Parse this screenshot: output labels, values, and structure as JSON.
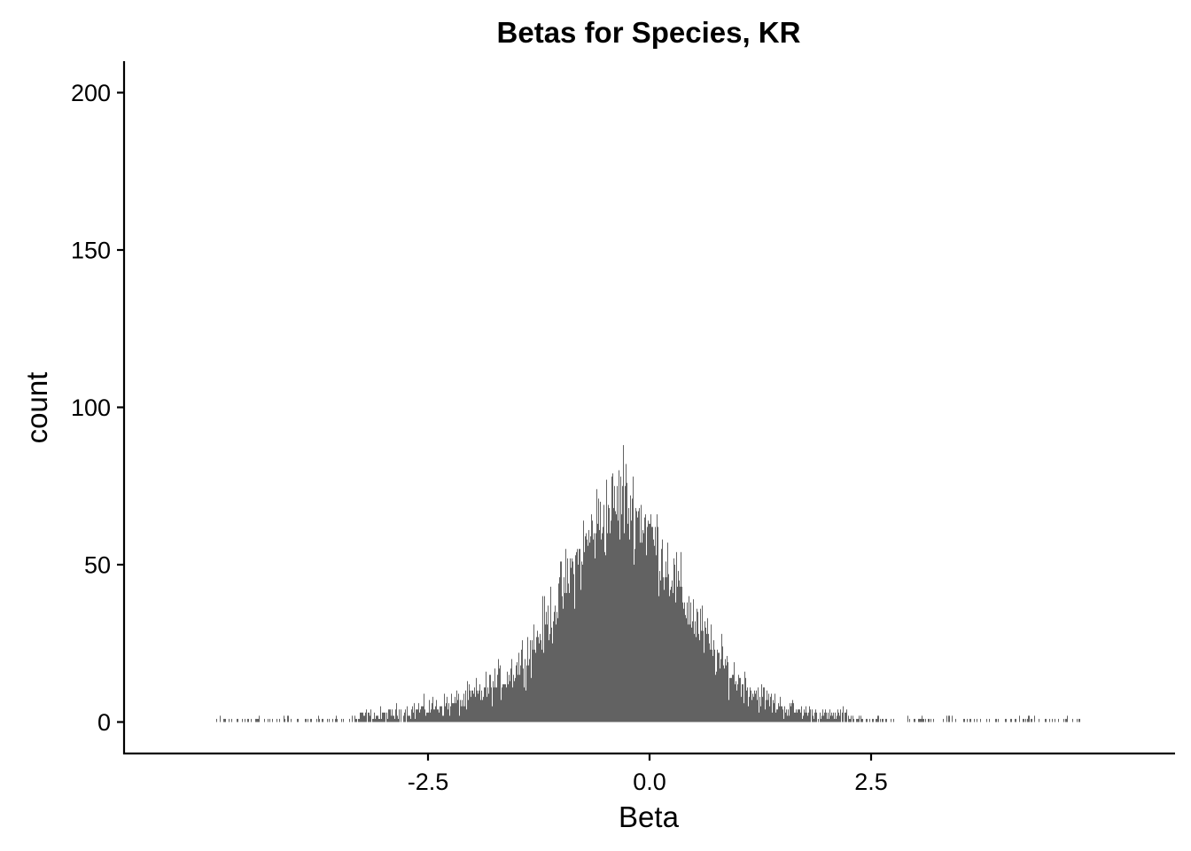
{
  "chart_data": {
    "type": "bar",
    "title": "Betas for Species, KR",
    "xlabel": "Beta",
    "ylabel": "count",
    "xlim": [
      -5.93,
      5.93
    ],
    "ylim": [
      -10,
      210
    ],
    "x_ticks": [
      -2.5,
      0.0,
      2.5
    ],
    "x_tick_labels": [
      "-2.5",
      "0.0",
      "2.5"
    ],
    "y_ticks": [
      0,
      50,
      100,
      150,
      200
    ],
    "y_tick_labels": [
      "0",
      "50",
      "100",
      "150",
      "200"
    ],
    "grid": false,
    "bar_color": "#474747",
    "bin_width": 0.01,
    "bin_range": [
      -4.9,
      4.85
    ],
    "distribution": {
      "mode_x": -0.3,
      "mode_count": 88,
      "description": "approximately normal histogram of beta values, peak near -0.3, sparse tails from about -4.9 to 4.8"
    },
    "series": [
      {
        "x": [
          -4.8,
          -4.6,
          -4.4,
          -4.2,
          -4.0,
          -3.8,
          -3.6,
          -3.4,
          -3.2,
          -3.0,
          -2.8,
          -2.6,
          -2.4,
          -2.2,
          -2.0,
          -1.8,
          -1.6,
          -1.4,
          -1.2,
          -1.0,
          -0.8,
          -0.6,
          -0.4,
          -0.3,
          -0.2,
          0.0,
          0.2,
          0.4,
          0.6,
          0.8,
          1.0,
          1.2,
          1.4,
          1.6,
          1.8,
          2.0,
          2.2,
          2.4,
          2.6,
          2.8,
          3.0,
          3.5,
          4.0,
          4.5
        ],
        "values": [
          1,
          1,
          1,
          1,
          1,
          1,
          1,
          1,
          2,
          2,
          3,
          4,
          5,
          6,
          8,
          11,
          15,
          21,
          30,
          41,
          52,
          63,
          69,
          70,
          68,
          61,
          50,
          38,
          28,
          19,
          13,
          9,
          6,
          4,
          3,
          2,
          2,
          1,
          1,
          1,
          1,
          1,
          1,
          1
        ]
      }
    ]
  }
}
